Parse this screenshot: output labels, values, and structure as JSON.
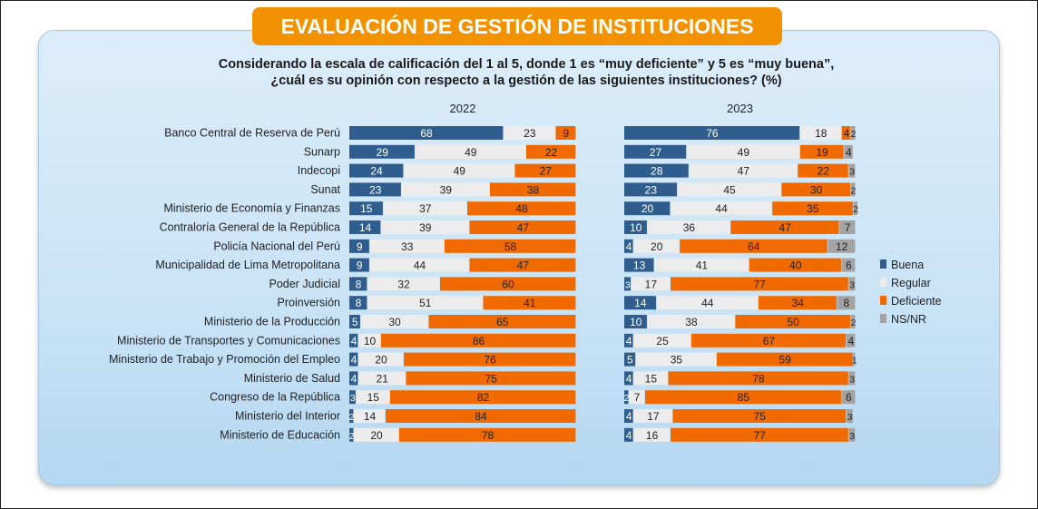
{
  "header": {
    "title": "EVALUACIÓN DE GESTIÓN DE INSTITUCIONES",
    "question_line1": "Considerando la escala de calificación del 1 al 5, donde 1 es “muy deficiente” y 5 es “muy buena”,",
    "question_line2": "¿cuál es su opinión con respecto a la gestión de las siguientes instituciones?  (%)"
  },
  "chart_data": {
    "type": "bar",
    "orientation": "horizontal-stacked-100",
    "categories": [
      "Banco Central de  Reserva de Perú",
      "Sunarp",
      "Indecopi",
      "Sunat",
      "Ministerio de Economía y Finanzas",
      "Contraloría General de la República",
      "Policía Nacional del Perú",
      "Municipalidad de Lima Metropolitana",
      "Poder Judicial",
      "Proinversión",
      "Ministerio de la Producción",
      "Ministerio de Transportes  y Comunicaciones",
      "Ministerio de Trabajo y Promoción del Empleo",
      "Ministerio de Salud",
      "Congreso de la República",
      "Ministerio del Interior",
      "Ministerio de Educación"
    ],
    "legend": {
      "placement": "right",
      "entries": [
        "Buena",
        "Regular",
        "Deficiente",
        "NS/NR"
      ]
    },
    "colors": {
      "Buena": "#2f5d8e",
      "Regular": "#ececec",
      "Deficiente": "#f06a00",
      "NS/NR": "#a3a3a3"
    },
    "panels": [
      {
        "title": "2022",
        "series": [
          {
            "name": "Buena",
            "values": [
              68,
              29,
              24,
              23,
              15,
              14,
              9,
              9,
              8,
              8,
              5,
              4,
              4,
              4,
              3,
              2,
              2
            ]
          },
          {
            "name": "Regular",
            "values": [
              23,
              49,
              49,
              39,
              37,
              39,
              33,
              44,
              32,
              51,
              30,
              10,
              20,
              21,
              15,
              14,
              20
            ]
          },
          {
            "name": "Deficiente",
            "values": [
              9,
              22,
              27,
              38,
              48,
              47,
              58,
              47,
              60,
              41,
              65,
              86,
              76,
              75,
              82,
              84,
              78
            ]
          },
          {
            "name": "NS/NR",
            "values": [
              0,
              0,
              0,
              0,
              0,
              0,
              0,
              0,
              0,
              0,
              0,
              0,
              0,
              0,
              0,
              0,
              0
            ]
          }
        ]
      },
      {
        "title": "2023",
        "series": [
          {
            "name": "Buena",
            "values": [
              76,
              27,
              28,
              23,
              20,
              10,
              4,
              13,
              3,
              14,
              10,
              4,
              5,
              4,
              2,
              4,
              4
            ]
          },
          {
            "name": "Regular",
            "values": [
              18,
              49,
              47,
              45,
              44,
              36,
              20,
              41,
              17,
              44,
              38,
              25,
              35,
              15,
              7,
              17,
              16
            ]
          },
          {
            "name": "Deficiente",
            "values": [
              4,
              19,
              22,
              30,
              35,
              47,
              64,
              40,
              77,
              34,
              50,
              67,
              59,
              78,
              85,
              75,
              77
            ]
          },
          {
            "name": "NS/NR",
            "values": [
              2,
              4,
              3,
              2,
              2,
              7,
              12,
              6,
              3,
              8,
              2,
              4,
              1,
              3,
              6,
              3,
              3
            ]
          }
        ]
      }
    ]
  }
}
